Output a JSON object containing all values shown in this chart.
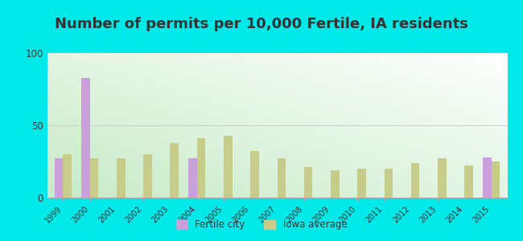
{
  "title": "Number of permits per 10,000 Fertile, IA residents",
  "years": [
    1999,
    2000,
    2001,
    2002,
    2003,
    2004,
    2005,
    2006,
    2007,
    2008,
    2009,
    2010,
    2011,
    2012,
    2013,
    2014,
    2015
  ],
  "fertile_city": [
    27,
    83,
    null,
    null,
    null,
    27,
    null,
    null,
    null,
    null,
    null,
    null,
    null,
    null,
    null,
    null,
    28
  ],
  "iowa_avg": [
    30,
    27,
    27,
    30,
    38,
    41,
    43,
    32,
    27,
    21,
    19,
    20,
    20,
    24,
    27,
    22,
    25
  ],
  "fertile_color": "#c9a0dc",
  "iowa_color": "#c8cc8a",
  "ylim": [
    0,
    100
  ],
  "yticks": [
    0,
    50,
    100
  ],
  "outer_bg": "#00e8e8",
  "bar_width": 0.32,
  "title_fontsize": 13,
  "legend_fertile": "Fertile city",
  "legend_iowa": "Iowa average"
}
